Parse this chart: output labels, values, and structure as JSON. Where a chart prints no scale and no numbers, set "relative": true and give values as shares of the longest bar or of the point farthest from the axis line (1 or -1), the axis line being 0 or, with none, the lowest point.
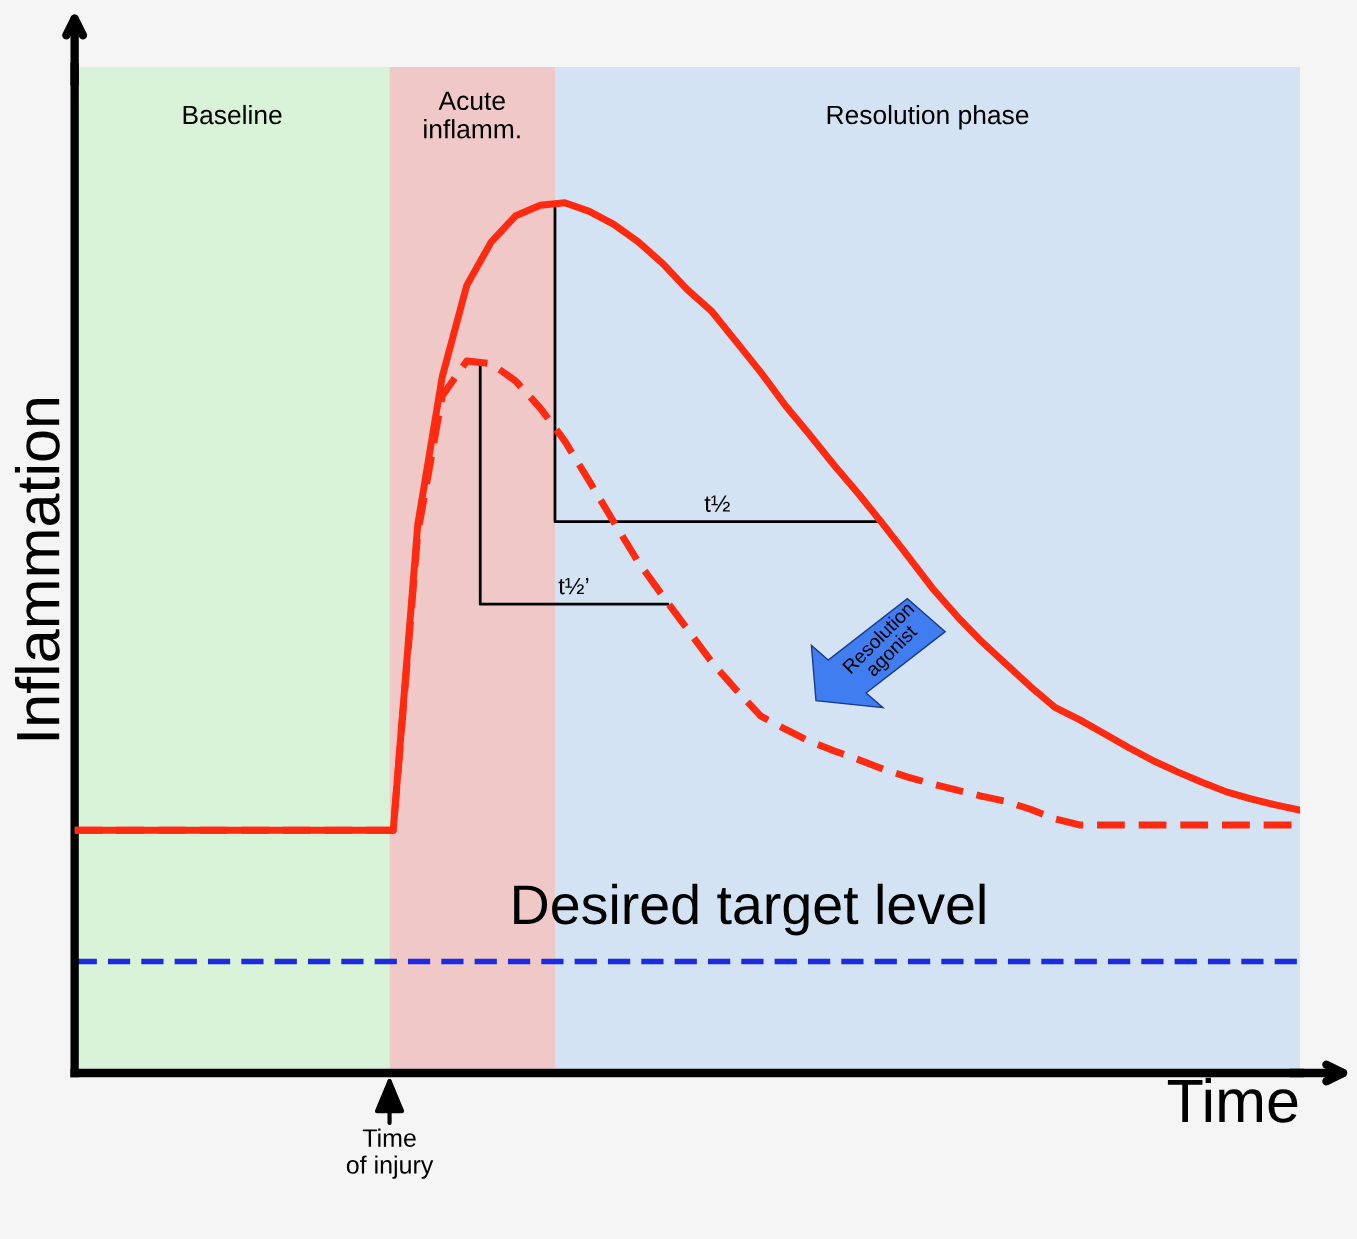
{
  "chart_data": {
    "type": "line",
    "relative": true,
    "xlabel": "Time",
    "ylabel": "Inflammation",
    "categories": [
      null,
      null,
      null,
      null,
      null,
      null,
      null,
      null,
      null,
      null,
      null,
      null,
      null,
      null,
      null,
      null,
      null,
      null,
      null,
      null,
      null,
      null,
      null,
      null,
      null,
      null,
      null,
      null,
      null,
      null,
      null,
      null,
      null,
      null,
      null,
      null,
      null,
      null,
      null,
      null,
      null,
      null,
      null,
      null,
      null,
      null,
      null,
      null,
      null,
      null,
      null
    ],
    "ref_lines": [
      {
        "axis": "y",
        "value": 0.128,
        "label": "Desired target level",
        "color": "#1a2be0",
        "line_style": "dashed"
      }
    ],
    "series": [
      {
        "color": "#ff2a10",
        "line_style": "solid",
        "values": [
          0.279,
          0.279,
          0.279,
          0.279,
          0.279,
          0.279,
          0.279,
          0.279,
          0.279,
          0.279,
          0.279,
          0.279,
          0.279,
          0.279,
          0.63,
          0.8,
          0.905,
          0.955,
          0.985,
          0.997,
          1.0,
          0.99,
          0.975,
          0.955,
          0.93,
          0.9,
          0.875,
          0.84,
          0.805,
          0.767,
          0.733,
          0.698,
          0.665,
          0.63,
          0.594,
          0.557,
          0.525,
          0.496,
          0.47,
          0.444,
          0.42,
          0.406,
          0.39,
          0.374,
          0.359,
          0.346,
          0.334,
          0.323,
          0.315,
          0.308,
          0.302
        ]
      },
      {
        "color": "#ff2a10",
        "line_style": "dashed",
        "values": [
          0.279,
          0.279,
          0.279,
          0.279,
          0.279,
          0.279,
          0.279,
          0.279,
          0.279,
          0.279,
          0.279,
          0.279,
          0.279,
          0.279,
          0.62,
          0.778,
          0.818,
          0.815,
          0.795,
          0.764,
          0.726,
          0.68,
          0.633,
          0.587,
          0.548,
          0.51,
          0.472,
          0.44,
          0.41,
          0.395,
          0.381,
          0.37,
          0.36,
          0.349,
          0.34,
          0.332,
          0.325,
          0.318,
          0.312,
          0.303,
          0.292,
          0.285,
          0.285,
          0.285,
          0.285,
          0.285,
          0.285,
          0.285,
          0.285,
          0.285,
          0.285
        ]
      }
    ],
    "annotations": [
      "Baseline",
      "Acute\ninflamm.",
      "Resolution phase",
      "t½",
      "t½’",
      "Resolution\nagonist",
      "Time\nof injury"
    ]
  }
}
